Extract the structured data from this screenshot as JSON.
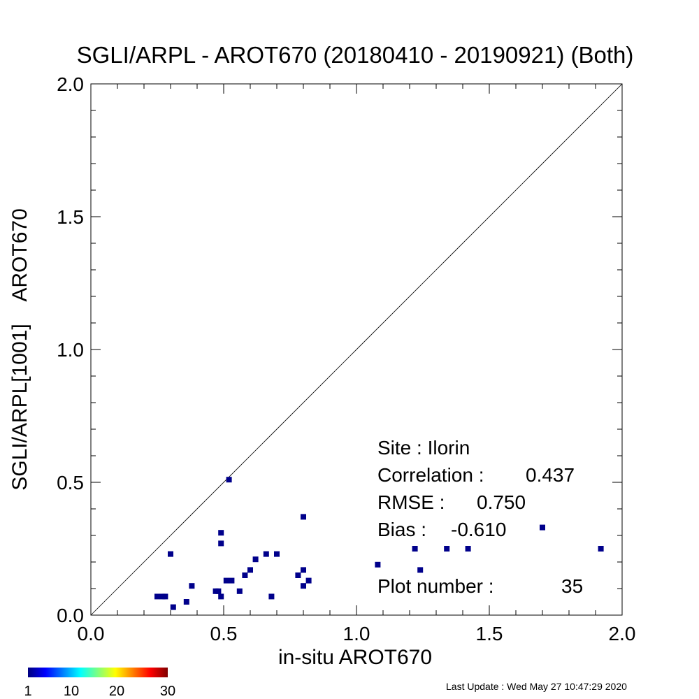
{
  "chart_data": {
    "type": "scatter",
    "title": "SGLI/ARPL - AROT670 (20180410 - 20190921) (Both)",
    "xlabel": "in-situ AROT670",
    "ylabel": "SGLI/ARPL[1001]    AROT670",
    "xlim": [
      0.0,
      2.0
    ],
    "ylim": [
      0.0,
      2.0
    ],
    "xticks": [
      "0.0",
      "0.5",
      "1.0",
      "1.5",
      "2.0"
    ],
    "yticks": [
      "0.0",
      "0.5",
      "1.0",
      "1.5",
      "2.0"
    ],
    "grid": false,
    "reference_line": "1:1",
    "point_color": "#00008b",
    "points": [
      {
        "x": 0.25,
        "y": 0.07
      },
      {
        "x": 0.27,
        "y": 0.07
      },
      {
        "x": 0.28,
        "y": 0.07
      },
      {
        "x": 0.3,
        "y": 0.23
      },
      {
        "x": 0.31,
        "y": 0.03
      },
      {
        "x": 0.36,
        "y": 0.05
      },
      {
        "x": 0.38,
        "y": 0.11
      },
      {
        "x": 0.47,
        "y": 0.09
      },
      {
        "x": 0.48,
        "y": 0.09
      },
      {
        "x": 0.49,
        "y": 0.07
      },
      {
        "x": 0.49,
        "y": 0.27
      },
      {
        "x": 0.49,
        "y": 0.31
      },
      {
        "x": 0.51,
        "y": 0.13
      },
      {
        "x": 0.53,
        "y": 0.13
      },
      {
        "x": 0.52,
        "y": 0.51
      },
      {
        "x": 0.56,
        "y": 0.09
      },
      {
        "x": 0.58,
        "y": 0.15
      },
      {
        "x": 0.6,
        "y": 0.17
      },
      {
        "x": 0.62,
        "y": 0.21
      },
      {
        "x": 0.66,
        "y": 0.23
      },
      {
        "x": 0.68,
        "y": 0.07
      },
      {
        "x": 0.7,
        "y": 0.23
      },
      {
        "x": 0.78,
        "y": 0.15
      },
      {
        "x": 0.8,
        "y": 0.17
      },
      {
        "x": 0.8,
        "y": 0.11
      },
      {
        "x": 0.82,
        "y": 0.13
      },
      {
        "x": 0.8,
        "y": 0.37
      },
      {
        "x": 1.08,
        "y": 0.19
      },
      {
        "x": 1.22,
        "y": 0.25
      },
      {
        "x": 1.24,
        "y": 0.17
      },
      {
        "x": 1.34,
        "y": 0.25
      },
      {
        "x": 1.42,
        "y": 0.25
      },
      {
        "x": 1.7,
        "y": 0.33
      },
      {
        "x": 1.92,
        "y": 0.25
      }
    ],
    "stats": {
      "site": "Site : Ilorin",
      "correlation_label": "Correlation :",
      "correlation_value": "0.437",
      "rmse_label": "RMSE :",
      "rmse_value": "0.750",
      "bias_label": "Bias :",
      "bias_value": "-0.610",
      "plot_number_label": "Plot number :",
      "plot_number_value": "35"
    },
    "colorbar": {
      "ticks": [
        "1",
        "10",
        "20",
        "30"
      ],
      "colors": [
        "#00007f",
        "#0000ff",
        "#007fff",
        "#00ffff",
        "#7fff7f",
        "#ffff00",
        "#ff7f00",
        "#ff0000",
        "#7f0000"
      ]
    }
  },
  "footer": {
    "last_update": "Last Update : Wed May 27 10:47:29 2020"
  }
}
